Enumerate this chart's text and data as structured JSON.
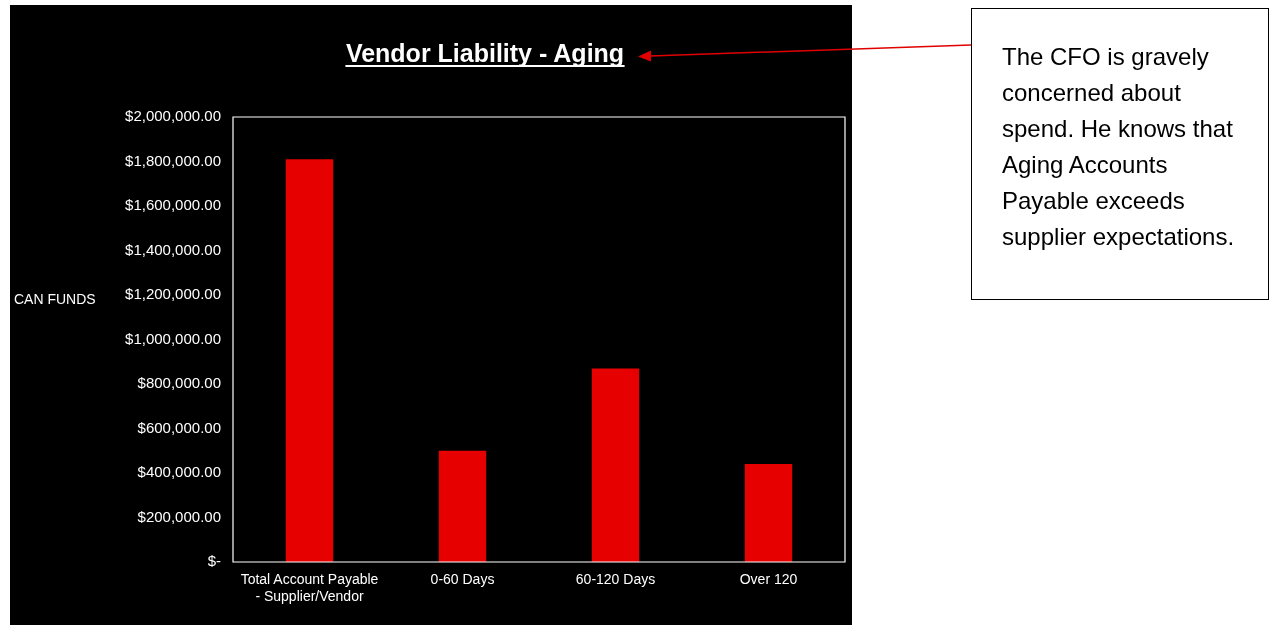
{
  "chart_data": {
    "type": "bar",
    "title": "Vendor Liability - Aging",
    "ylabel": "CAN FUNDS",
    "categories": [
      "Total Account Payable - Supplier/Vendor",
      "0-60 Days",
      "60-120 Days",
      "Over 120"
    ],
    "values": [
      1810000,
      500000,
      870000,
      440000
    ],
    "color": "#e60000",
    "ylim": [
      0,
      2000000
    ],
    "yticks": [
      {
        "value": 0,
        "label": "$-"
      },
      {
        "value": 200000,
        "label": "$200,000.00"
      },
      {
        "value": 400000,
        "label": "$400,000.00"
      },
      {
        "value": 600000,
        "label": "$600,000.00"
      },
      {
        "value": 800000,
        "label": "$800,000.00"
      },
      {
        "value": 1000000,
        "label": "$1,000,000.00"
      },
      {
        "value": 1200000,
        "label": "$1,200,000.00"
      },
      {
        "value": 1400000,
        "label": "$1,400,000.00"
      },
      {
        "value": 1600000,
        "label": "$1,600,000.00"
      },
      {
        "value": 1800000,
        "label": "$1,800,000.00"
      },
      {
        "value": 2000000,
        "label": "$2,000,000.00"
      }
    ],
    "grid": false,
    "legend": false,
    "annotations": [
      "The CFO is gravely concerned about spend. He knows that Aging Accounts Payable exceeds supplier expectations."
    ]
  }
}
